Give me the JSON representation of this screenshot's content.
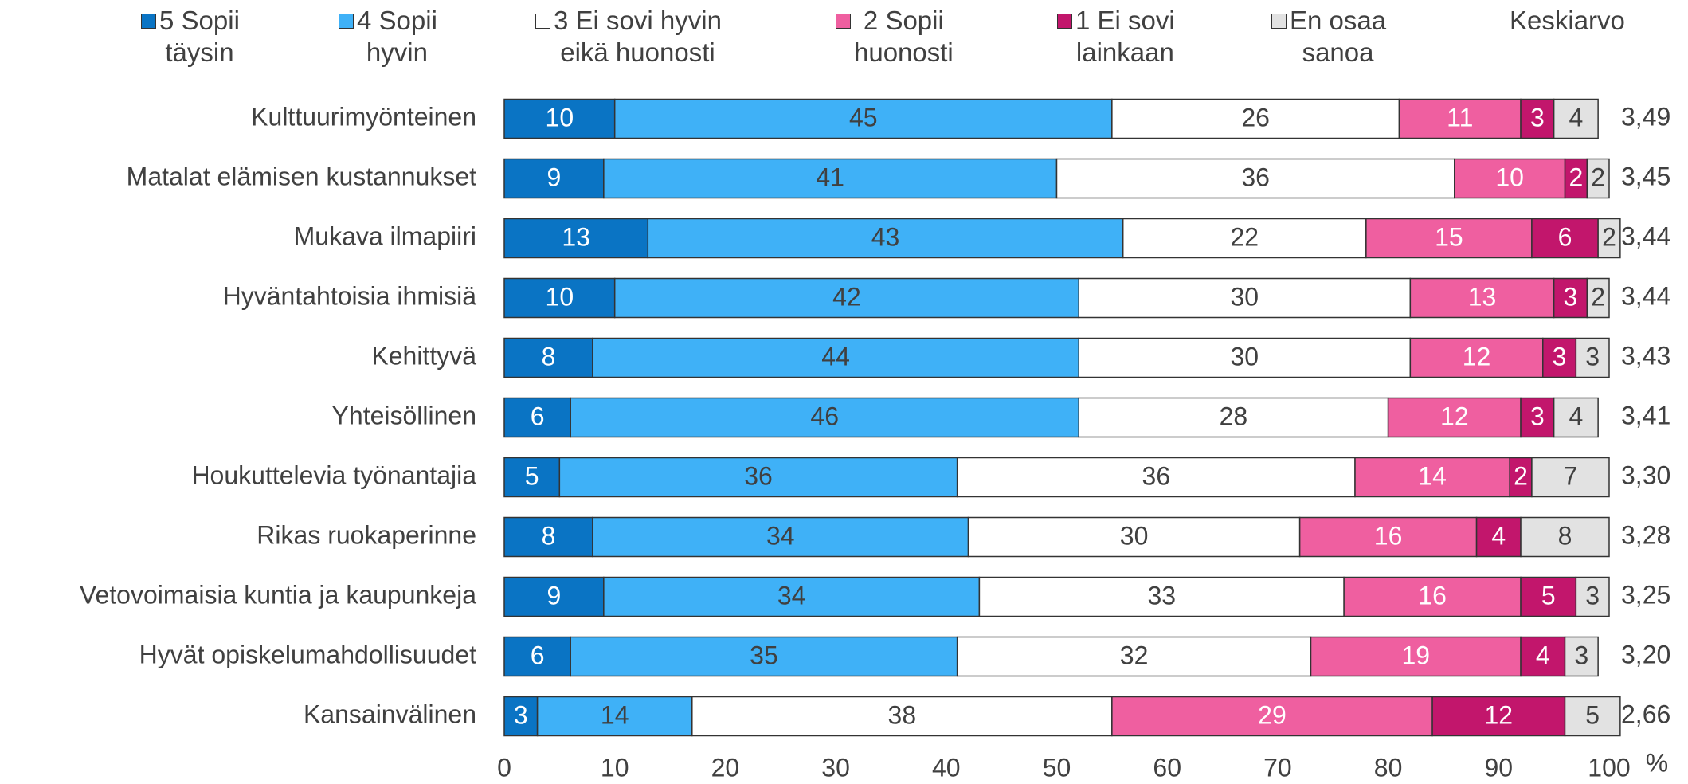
{
  "chart_data": {
    "type": "stacked_barh",
    "categories": [
      "Kulttuurimyönteinen",
      "Matalat elämisen kustannukset",
      "Mukava ilmapiiri",
      "Hyväntahtoisia ihmisiä",
      "Kehittyvä",
      "Yhteisöllinen",
      "Houkuttelevia työnantajia",
      "Rikas ruokaperinne",
      "Vetovoimaisia kuntia ja kaupunkeja",
      "Hyvät opiskelumahdollisuudet",
      "Kansainvälinen"
    ],
    "series": [
      {
        "name": "5 Sopii\ntäysin",
        "color": "#0a74c4",
        "values": [
          10,
          9,
          13,
          10,
          8,
          6,
          5,
          8,
          9,
          6,
          3
        ]
      },
      {
        "name": "4 Sopii\nhyvin",
        "color": "#3fb1f7",
        "values": [
          45,
          41,
          43,
          42,
          44,
          46,
          36,
          34,
          34,
          35,
          14
        ]
      },
      {
        "name": "3 Ei sovi hyvin\neikä huonosti",
        "color": "#ffffff",
        "values": [
          26,
          36,
          22,
          30,
          30,
          28,
          36,
          30,
          33,
          32,
          38
        ]
      },
      {
        "name": "2 Sopii\nhuonosti",
        "color": "#ef5fa0",
        "values": [
          11,
          10,
          15,
          13,
          12,
          12,
          14,
          16,
          16,
          19,
          29
        ]
      },
      {
        "name": "1 Ei sovi\nlainkaan",
        "color": "#c2166c",
        "values": [
          3,
          2,
          6,
          3,
          3,
          3,
          2,
          4,
          5,
          4,
          12
        ]
      },
      {
        "name": "En osaa\nsanoa",
        "color": "#e2e2e2",
        "values": [
          4,
          2,
          2,
          2,
          3,
          4,
          7,
          8,
          3,
          3,
          5
        ]
      }
    ],
    "means": {
      "name": "Keskiarvo",
      "values": [
        3.49,
        3.45,
        3.44,
        3.44,
        3.43,
        3.41,
        3.3,
        3.28,
        3.25,
        3.2,
        2.66
      ],
      "value_labels": [
        "3,49",
        "3,45",
        "3,44",
        "3,44",
        "3,43",
        "3,41",
        "3,30",
        "3,28",
        "3,25",
        "3,20",
        "2,66"
      ]
    },
    "xlabel": "%",
    "xlim": [
      0,
      100
    ],
    "xticks": [
      0,
      10,
      20,
      30,
      40,
      50,
      60,
      70,
      80,
      90,
      100
    ]
  }
}
